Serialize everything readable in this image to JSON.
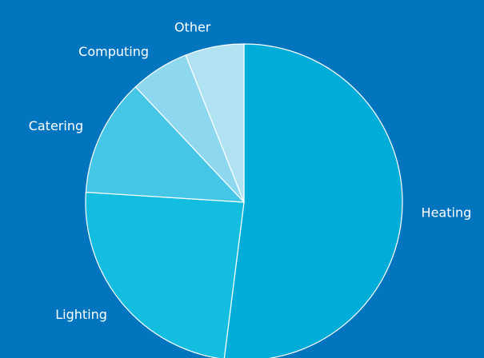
{
  "chart_data": {
    "type": "pie",
    "categories": [
      "Heating",
      "Lighting",
      "Catering",
      "Computing",
      "Other"
    ],
    "values": [
      52,
      24,
      12,
      6,
      6
    ],
    "colors": [
      "#00acd8",
      "#12bde0",
      "#45c6e6",
      "#8dd7ef",
      "#b0e2f2"
    ]
  }
}
